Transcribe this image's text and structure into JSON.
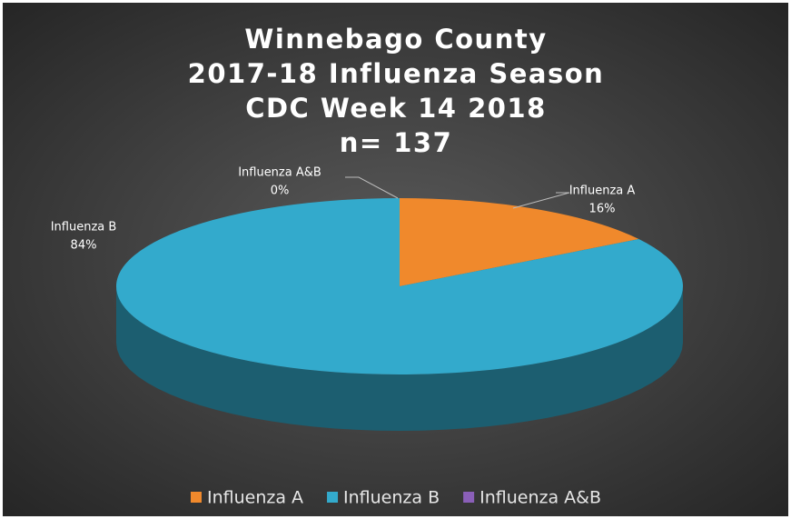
{
  "chart_data": {
    "type": "pie3d",
    "title": [
      "Winnebago County",
      "2017-18 Influenza Season",
      "CDC Week 14 2018",
      "n= 137"
    ],
    "categories": [
      "Influenza A",
      "Influenza B",
      "Influenza A&B"
    ],
    "values": [
      16,
      84,
      0
    ],
    "value_labels": [
      "16%",
      "84%",
      "0%"
    ],
    "colors": [
      "#f0892c",
      "#33aacc",
      "#8a5fb8"
    ],
    "legend": "bottom"
  }
}
